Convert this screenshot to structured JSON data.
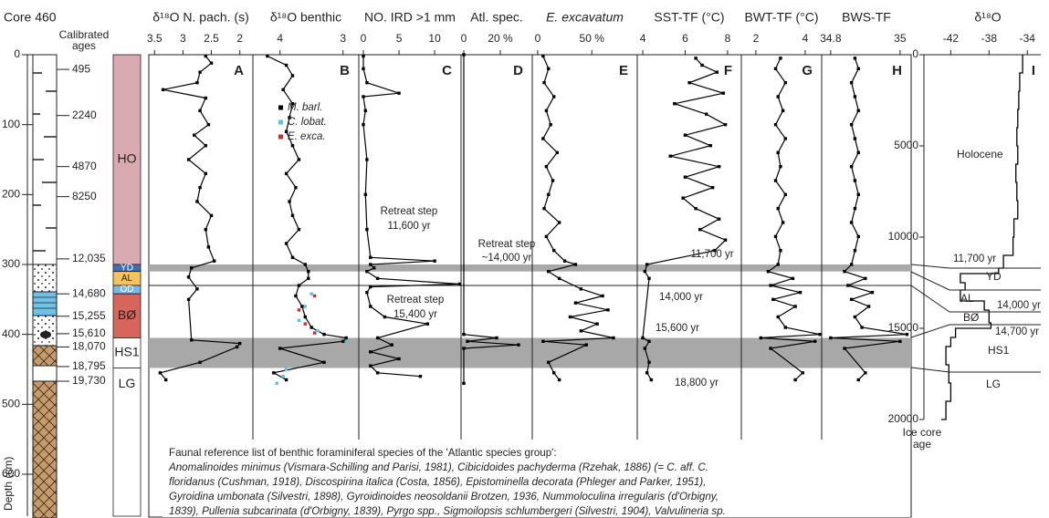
{
  "chart_data": [
    {
      "type": "core-log",
      "title": "Core 460",
      "age_axis_title": [
        "Calibrated",
        "ages"
      ],
      "y_label": "Depth (cm)",
      "ylim": [
        0,
        660
      ],
      "yticks": [
        0,
        100,
        200,
        300,
        400,
        500,
        600
      ],
      "ages": {
        "depths": [
          21,
          87,
          160,
          203,
          292,
          342,
          374,
          399,
          418,
          446,
          467
        ],
        "labels": [
          "495",
          "2240",
          "4870",
          "8250",
          "12,035",
          "14,680",
          "15,255",
          "15,610",
          "18,070",
          "18,795",
          "19,730"
        ]
      },
      "zones": {
        "labels": [
          "HO",
          "YD",
          "AL",
          "OD",
          "BØ",
          "HS1",
          "LG"
        ],
        "from": [
          0,
          300,
          310,
          330,
          342,
          405,
          448
        ],
        "to": [
          300,
          310,
          330,
          342,
          405,
          448,
          660
        ],
        "colors": [
          "#d9aab1",
          "#3f6fb6",
          "#f3c45e",
          "#7cb9e4",
          "#d7655c",
          "#ffffff",
          "#ffffff"
        ]
      },
      "bands": {
        "from": [
          300,
          405
        ],
        "to": [
          310,
          448
        ],
        "color": "#a8a8a8"
      },
      "boundary": 330
    },
    {
      "type": "line",
      "title": "δ¹⁸O N. pach. (s)",
      "letter": "A",
      "xlim": [
        3.6,
        1.77
      ],
      "xticks": [
        3.5,
        3,
        2.5,
        2
      ],
      "ylim": [
        0,
        660
      ],
      "color": "#000000",
      "depth": [
        2,
        12,
        25,
        40,
        50,
        62,
        80,
        100,
        115,
        130,
        150,
        170,
        190,
        210,
        230,
        250,
        275,
        295,
        305,
        318,
        335,
        350,
        408,
        413,
        418,
        440,
        455,
        465
      ],
      "values": [
        2.6,
        2.5,
        2.7,
        2.75,
        3.35,
        2.6,
        2.7,
        2.55,
        2.8,
        2.6,
        2.9,
        2.6,
        2.7,
        2.75,
        2.5,
        2.6,
        2.55,
        2.45,
        2.85,
        2.9,
        2.75,
        2.9,
        2.85,
        2.0,
        2.05,
        2.7,
        3.4,
        3.3
      ]
    },
    {
      "type": "line",
      "title": "δ¹⁸O benthic",
      "letter": "B",
      "xlim": [
        4.43,
        2.75
      ],
      "xticks": [
        4,
        3
      ],
      "ylim": [
        0,
        660
      ],
      "series": [
        {
          "name": "M. barl.",
          "color": "#000000",
          "depth": [
            2,
            15,
            30,
            50,
            70,
            90,
            110,
            130,
            150,
            170,
            190,
            210,
            230,
            250,
            270,
            290,
            300,
            310,
            320,
            330,
            345,
            360,
            375,
            390,
            400,
            405,
            410,
            420,
            440,
            455,
            465
          ],
          "values": [
            4.2,
            3.9,
            3.8,
            3.95,
            3.8,
            3.85,
            3.9,
            3.8,
            3.7,
            3.9,
            3.75,
            3.85,
            3.8,
            3.7,
            3.9,
            3.8,
            3.6,
            3.55,
            3.55,
            3.7,
            3.75,
            3.65,
            3.6,
            3.5,
            3.3,
            2.95,
            3.0,
            4.0,
            3.3,
            4.1,
            3.9
          ]
        },
        {
          "name": "C. lobat.",
          "color": "#4fc6ea",
          "depth": [
            342,
            360,
            380,
            395,
            410,
            450,
            460,
            470
          ],
          "values": [
            3.5,
            3.6,
            3.7,
            3.4,
            2.95,
            3.9,
            3.95,
            4.05
          ]
        },
        {
          "name": "E. exca.",
          "color": "#d42a2a",
          "depth": [
            345,
            365,
            385,
            398
          ],
          "values": [
            3.45,
            3.7,
            3.6,
            3.45
          ]
        }
      ]
    },
    {
      "type": "line",
      "title": "NO. IRD >1 mm",
      "letter": "C",
      "xlim": [
        -0.64,
        13.7
      ],
      "xticks": [
        0,
        5,
        10
      ],
      "ylim": [
        0,
        660
      ],
      "color": "#000000",
      "depth": [
        2,
        20,
        40,
        55,
        60,
        80,
        100,
        150,
        200,
        250,
        290,
        295,
        300,
        305,
        310,
        320,
        328,
        332,
        340,
        360,
        375,
        385,
        405,
        415,
        425,
        435,
        445,
        455,
        460
      ],
      "values": [
        0,
        0,
        0.5,
        5,
        0,
        0.3,
        0,
        0.5,
        0.3,
        0.5,
        1,
        10,
        1,
        1.5,
        0.5,
        2,
        13.5,
        1,
        0.5,
        1,
        3,
        9,
        2,
        4,
        1,
        5,
        1,
        2,
        8
      ],
      "annotations": [
        [
          "Retreat step",
          "11,600 yr"
        ],
        [
          "Retreat step",
          "~14,000 yr"
        ],
        [
          "Retreat step",
          "15,400 yr"
        ]
      ]
    },
    {
      "type": "line",
      "title": "Atl. spec.",
      "letter": "D",
      "xlim": [
        -1.5,
        37.5
      ],
      "xticks": [
        0,
        {
          "value": 20,
          "label": "20 %"
        }
      ],
      "ylim": [
        0,
        660
      ],
      "color": "#000000",
      "depth": [
        0,
        400,
        405,
        410,
        415,
        420,
        470
      ],
      "values": [
        0,
        0,
        18,
        2,
        30,
        0,
        0
      ]
    },
    {
      "type": "line",
      "title": "E. excavatum",
      "letter": "E",
      "xlim": [
        -5,
        92
      ],
      "xticks": [
        0,
        {
          "value": 50,
          "label": "50 %"
        }
      ],
      "ylim": [
        0,
        660
      ],
      "color": "#000000",
      "depth": [
        2,
        20,
        40,
        60,
        80,
        100,
        120,
        140,
        160,
        180,
        200,
        220,
        240,
        260,
        280,
        295,
        300,
        310,
        320,
        335,
        345,
        355,
        365,
        375,
        385,
        395,
        405,
        410,
        415,
        440,
        455,
        465
      ],
      "values": [
        5,
        10,
        6,
        15,
        8,
        12,
        5,
        18,
        8,
        14,
        10,
        6,
        20,
        8,
        15,
        25,
        35,
        10,
        20,
        40,
        60,
        35,
        65,
        30,
        55,
        40,
        70,
        5,
        45,
        10,
        15,
        20
      ]
    },
    {
      "type": "line",
      "title": "SST-TF (°C)",
      "letter": "F",
      "xlim": [
        3.74,
        8.65
      ],
      "xticks": [
        4,
        6,
        8
      ],
      "ylim": [
        0,
        660
      ],
      "color": "#000000",
      "depth": [
        5,
        15,
        25,
        40,
        55,
        70,
        85,
        100,
        115,
        130,
        145,
        160,
        175,
        190,
        205,
        220,
        235,
        250,
        265,
        280,
        300,
        310,
        320,
        405,
        410,
        420,
        440,
        455,
        465
      ],
      "values": [
        6.5,
        6.8,
        7.5,
        6.2,
        7.8,
        5.5,
        7.0,
        7.9,
        6.0,
        7.2,
        5.3,
        7.6,
        6.0,
        7.3,
        5.9,
        6.5,
        7.6,
        6.7,
        7.9,
        7.4,
        4.2,
        4.1,
        4.3,
        4.0,
        4.3,
        4.1,
        4.3,
        4.2,
        4.4
      ],
      "annotations": [
        [
          "11,700 yr"
        ],
        [
          "14,000 yr"
        ],
        [
          "15,600 yr"
        ],
        [
          "18,800 yr"
        ]
      ]
    },
    {
      "type": "line",
      "title": "BWT-TF (°C)",
      "letter": "G",
      "xlim": [
        1.41,
        4.67
      ],
      "xticks": [
        2,
        4
      ],
      "ylim": [
        0,
        660
      ],
      "color": "#000000",
      "depth": [
        5,
        20,
        40,
        60,
        80,
        100,
        120,
        140,
        160,
        180,
        200,
        220,
        240,
        260,
        280,
        300,
        310,
        320,
        330,
        340,
        350,
        360,
        375,
        390,
        400,
        405,
        410,
        420,
        455,
        465
      ],
      "values": [
        3.0,
        2.8,
        3.2,
        2.9,
        3.1,
        2.8,
        3.2,
        2.9,
        3.0,
        2.8,
        3.2,
        2.9,
        3.1,
        2.8,
        3.0,
        2.9,
        2.5,
        3.5,
        2.6,
        3.8,
        2.7,
        3.6,
        2.9,
        3.2,
        4.6,
        2.2,
        4.4,
        2.6,
        3.9,
        3.6
      ]
    },
    {
      "type": "line",
      "title": "BWS-TF",
      "letter": "H",
      "xlim": [
        34.774,
        35.032
      ],
      "xticks": [
        34.8,
        35
      ],
      "ylim": [
        0,
        660
      ],
      "color": "#000000",
      "depth": [
        5,
        20,
        40,
        60,
        80,
        100,
        120,
        140,
        160,
        180,
        200,
        220,
        240,
        260,
        280,
        300,
        310,
        320,
        330,
        340,
        350,
        360,
        375,
        390,
        400,
        405,
        410,
        420,
        455,
        465
      ],
      "values": [
        34.87,
        34.88,
        34.86,
        34.87,
        34.88,
        34.86,
        34.87,
        34.88,
        34.86,
        34.87,
        34.88,
        34.87,
        34.86,
        34.88,
        34.87,
        34.86,
        34.84,
        34.9,
        34.85,
        34.92,
        34.86,
        34.91,
        34.87,
        34.89,
        35.02,
        34.8,
        35.0,
        34.84,
        34.9,
        34.88
      ]
    },
    {
      "type": "line",
      "title": "δ¹⁸O",
      "letter": "I",
      "xlim": [
        -44.8,
        -32.6
      ],
      "xticks": [
        -42,
        -38,
        -34
      ],
      "ylim": [
        0,
        20000
      ],
      "yticks": [
        0,
        5000,
        10000,
        15000,
        20000
      ],
      "color": "#000000",
      "y_label": [
        "Ice core",
        "age"
      ],
      "age": [
        0,
        1000,
        2000,
        3000,
        4000,
        5000,
        6000,
        7000,
        8000,
        9000,
        10000,
        11000,
        11700,
        12000,
        12500,
        12900,
        13500,
        14000,
        14700,
        15000,
        15500,
        16000,
        17000,
        18000,
        19000,
        20000
      ],
      "values": [
        -34.5,
        -34.8,
        -34.9,
        -35,
        -35.1,
        -35,
        -35.2,
        -35.1,
        -35,
        -35.4,
        -35.5,
        -36.5,
        -37,
        -41,
        -40.5,
        -41,
        -38.5,
        -38,
        -37.8,
        -41.5,
        -42,
        -42.5,
        -42.2,
        -42,
        -42.5,
        -43
      ],
      "zone_labels": [
        "Holocene",
        "YD",
        "AL",
        "BØ",
        "HS1",
        "LG"
      ],
      "age_notes": [
        "11,700 yr",
        "14,000 yr",
        "14,700 yr"
      ]
    }
  ],
  "note": {
    "lines": [
      "Faunal reference list of benthic foraminiferal species of the 'Atlantic species group':",
      "Anomalinoides minimus (Vismara-Schilling and Parisi, 1981), Cibicidoides pachyderma (Rzehak, 1886) (= C. aff. C.",
      "floridanus (Cushman, 1918), Discospirina italica (Costa, 1856), Epistominella decorata (Phleger and Parker, 1951),",
      "Gyroidina umbonata (Silvestri, 1898), Gyroidinoides neosoldanii Brotzen, 1936, Nummoloculina irregularis (d'Orbigny,",
      "1839), Pullenia subcarinata (d'Orbigny, 1839), Pyrgo spp., Sigmoilopsis schlumbergeri (Silvestri, 1904), Valvulineria sp."
    ]
  }
}
